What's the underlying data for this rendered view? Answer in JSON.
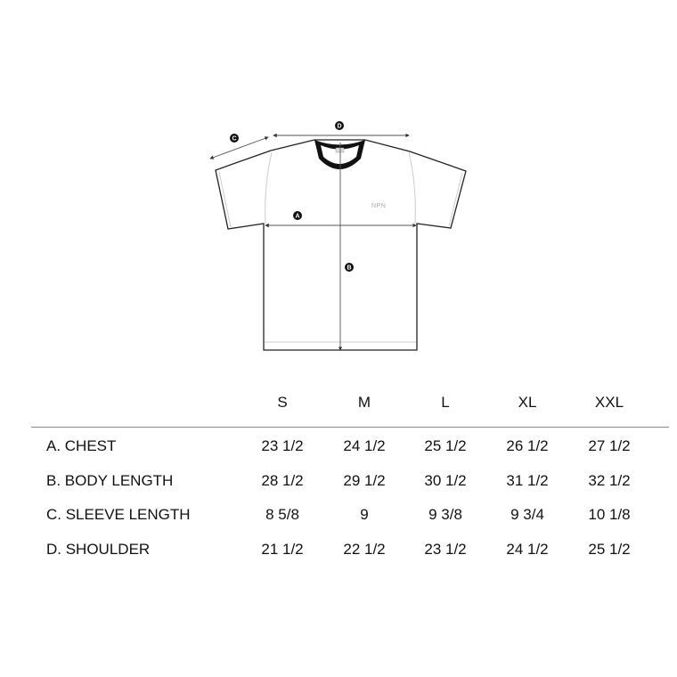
{
  "diagram": {
    "logo_text": "NPN",
    "markers": {
      "a": "A",
      "b": "B",
      "c": "C",
      "d": "D"
    },
    "colors": {
      "outline": "#222222",
      "collar": "#111111",
      "measure": "#555555"
    }
  },
  "table": {
    "columns": [
      "S",
      "M",
      "L",
      "XL",
      "XXL"
    ],
    "rows": [
      {
        "label": "A. CHEST",
        "values": [
          "23 1/2",
          "24 1/2",
          "25 1/2",
          "26 1/2",
          "27 1/2"
        ]
      },
      {
        "label": "B. BODY LENGTH",
        "values": [
          "28 1/2",
          "29 1/2",
          "30 1/2",
          "31 1/2",
          "32 1/2"
        ]
      },
      {
        "label": "C. SLEEVE LENGTH",
        "values": [
          "8 5/8",
          "9",
          "9 3/8",
          "9 3/4",
          "10 1/8"
        ]
      },
      {
        "label": "D. SHOULDER",
        "values": [
          "21 1/2",
          "22 1/2",
          "23 1/2",
          "24 1/2",
          "25 1/2"
        ]
      }
    ]
  }
}
